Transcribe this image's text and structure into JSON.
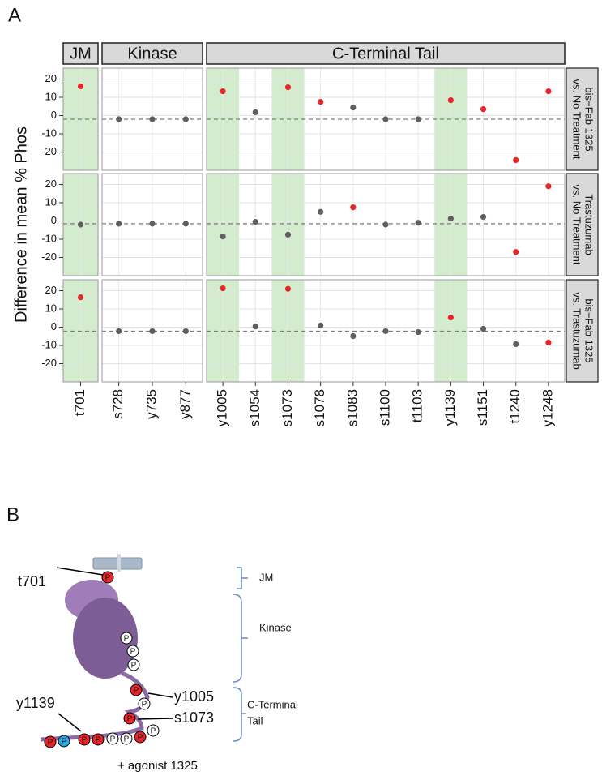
{
  "chart_data": {
    "type": "dot",
    "panel_label": "A",
    "y_label": "Difference in mean % Phos",
    "categories": [
      "t701",
      "s728",
      "y735",
      "y877",
      "y1005",
      "s1054",
      "s1073",
      "s1078",
      "s1083",
      "s1100",
      "t1103",
      "y1139",
      "s1151",
      "t1240",
      "y1248"
    ],
    "category_groups": [
      "JM",
      "Kinase",
      "Kinase",
      "Kinase",
      "C-Terminal Tail",
      "C-Terminal Tail",
      "C-Terminal Tail",
      "C-Terminal Tail",
      "C-Terminal Tail",
      "C-Terminal Tail",
      "C-Terminal Tail",
      "C-Terminal Tail",
      "C-Terminal Tail",
      "C-Terminal Tail",
      "C-Terminal Tail"
    ],
    "highlighted": [
      true,
      false,
      false,
      false,
      true,
      false,
      true,
      false,
      false,
      false,
      false,
      true,
      false,
      false,
      false
    ],
    "ylim": [
      -30,
      26
    ],
    "yticks": [
      -20,
      -10,
      0,
      10,
      20
    ],
    "colors": {
      "significant": "#e8262a",
      "other": "#5f5f5f",
      "highlight": "#d3ecce",
      "reference": "#7a7a7a"
    },
    "series": [
      {
        "label_lines": [
          "bis−Fab 1325",
          "vs. No Treatment"
        ],
        "reference": -2,
        "values": [
          16,
          -2,
          -2,
          -2,
          13.3,
          1.8,
          15.5,
          7.5,
          4.4,
          -2,
          -2,
          8.4,
          3.5,
          -24.4,
          13.3
        ],
        "significant": [
          true,
          false,
          false,
          false,
          true,
          false,
          true,
          true,
          false,
          false,
          false,
          true,
          true,
          true,
          true
        ]
      },
      {
        "label_lines": [
          "Trastuzumab",
          "vs. No Treatment"
        ],
        "reference": -1.5,
        "values": [
          -2,
          -1.5,
          -1.5,
          -1.5,
          -8.5,
          -0.5,
          -7.5,
          5,
          7.5,
          -2,
          -1,
          1.3,
          2.2,
          -17,
          19
        ],
        "significant": [
          false,
          false,
          false,
          false,
          false,
          false,
          false,
          false,
          true,
          false,
          false,
          false,
          false,
          true,
          true
        ]
      },
      {
        "label_lines": [
          "bis−Fab 1325",
          "vs. Trastuzumab"
        ],
        "reference": -2.2,
        "values": [
          16.4,
          -2.2,
          -2.2,
          -2.2,
          21.3,
          0.4,
          21,
          0.9,
          -4.9,
          -2.2,
          -2.7,
          5.3,
          -0.9,
          -9.3,
          -8.4
        ],
        "significant": [
          true,
          false,
          false,
          false,
          true,
          false,
          true,
          false,
          false,
          false,
          false,
          true,
          false,
          false,
          true
        ]
      }
    ]
  },
  "diagram": {
    "panel_label": "B",
    "sites": [
      "t701",
      "y1005",
      "s1073",
      "y1139"
    ],
    "domains": [
      "JM",
      "Kinase"
    ],
    "c_terminal_lines": [
      "C-Terminal",
      "Tail"
    ],
    "phospho": "P",
    "agonist": "+ agonist 1325"
  }
}
